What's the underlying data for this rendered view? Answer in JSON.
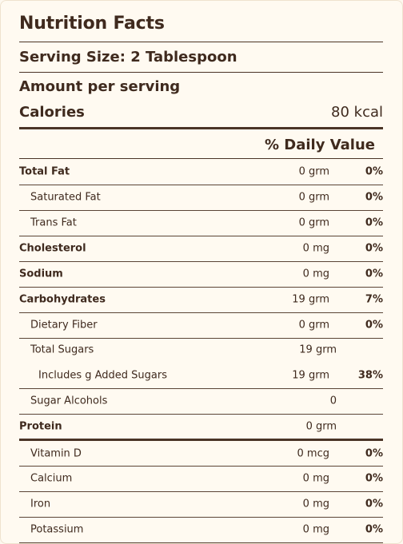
{
  "label": {
    "title": "Nutrition Facts",
    "serving_size": "Serving Size: 2 Tablespoon",
    "amount_per_serving": "Amount per serving",
    "calories_label": "Calories",
    "calories_value": "80 kcal",
    "daily_value_header": "% Daily Value"
  },
  "rows": [
    {
      "name": "Total Fat",
      "amount": "0 grm",
      "percent": "0%"
    },
    {
      "name": "Saturated Fat",
      "amount": "0 grm",
      "percent": "0%"
    },
    {
      "name": "Trans Fat",
      "amount": "0 grm",
      "percent": "0%"
    },
    {
      "name": "Cholesterol",
      "amount": "0 mg",
      "percent": "0%"
    },
    {
      "name": "Sodium",
      "amount": "0 mg",
      "percent": "0%"
    },
    {
      "name": "Carbohydrates",
      "amount": "19 grm",
      "percent": "7%"
    },
    {
      "name": "Dietary Fiber",
      "amount": "0 grm",
      "percent": "0%"
    },
    {
      "name": "Total Sugars",
      "amount": "19 grm",
      "percent": ""
    },
    {
      "name": "Includes g Added Sugars",
      "amount": "19 grm",
      "percent": "38%"
    },
    {
      "name": "Sugar Alcohols",
      "amount": "0",
      "percent": ""
    },
    {
      "name": "Protein",
      "amount": "0 grm",
      "percent": ""
    },
    {
      "name": "Vitamin D",
      "amount": "0 mcg",
      "percent": "0%"
    },
    {
      "name": "Calcium",
      "amount": "0 mg",
      "percent": "0%"
    },
    {
      "name": "Iron",
      "amount": "0 mg",
      "percent": "0%"
    },
    {
      "name": "Potassium",
      "amount": "0 mg",
      "percent": "0%"
    }
  ],
  "colors": {
    "background": "#fffaf1",
    "text": "#3f2a1e",
    "rule": "#4a3426"
  }
}
